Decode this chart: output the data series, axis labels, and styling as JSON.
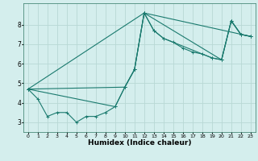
{
  "title": "",
  "xlabel": "Humidex (Indice chaleur)",
  "ylabel": "",
  "bg_color": "#d4eeed",
  "grid_color": "#b8d8d5",
  "line_color": "#1a7a6e",
  "xlim": [
    -0.5,
    23.5
  ],
  "ylim": [
    2.5,
    9.1
  ],
  "xticks": [
    0,
    1,
    2,
    3,
    4,
    5,
    6,
    7,
    8,
    9,
    10,
    11,
    12,
    13,
    14,
    15,
    16,
    17,
    18,
    19,
    20,
    21,
    22,
    23
  ],
  "yticks": [
    3,
    4,
    5,
    6,
    7,
    8
  ],
  "series": [
    {
      "x": [
        0,
        1,
        2,
        3,
        4,
        5,
        6,
        7,
        8,
        9,
        10,
        11,
        12,
        13,
        14,
        15,
        16,
        17,
        18,
        19,
        20,
        21,
        22,
        23
      ],
      "y": [
        4.7,
        4.2,
        3.3,
        3.5,
        3.5,
        3.0,
        3.3,
        3.3,
        3.5,
        3.8,
        4.8,
        5.7,
        8.6,
        7.7,
        7.3,
        7.1,
        6.8,
        6.6,
        6.5,
        6.3,
        6.2,
        8.2,
        7.5,
        7.4
      ]
    },
    {
      "x": [
        0,
        9,
        10,
        11,
        12,
        13,
        14,
        19,
        20,
        21,
        22,
        23
      ],
      "y": [
        4.7,
        3.8,
        4.8,
        5.7,
        8.6,
        7.7,
        7.3,
        6.3,
        6.2,
        8.2,
        7.5,
        7.4
      ]
    },
    {
      "x": [
        0,
        10,
        11,
        12,
        20,
        21,
        22,
        23
      ],
      "y": [
        4.7,
        4.8,
        5.7,
        8.6,
        6.2,
        8.2,
        7.5,
        7.4
      ]
    },
    {
      "x": [
        0,
        12,
        23
      ],
      "y": [
        4.7,
        8.6,
        7.4
      ]
    }
  ]
}
